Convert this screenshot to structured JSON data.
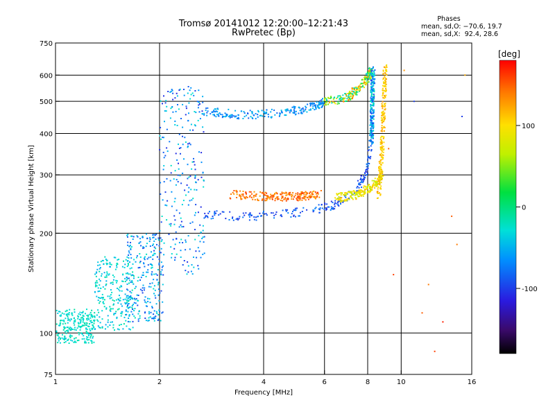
{
  "chart_data": {
    "type": "scatter",
    "title": "Tromsø 20141012 12:20:00–12:21:43",
    "subtitle": "RwPretec (Bp)",
    "xlabel": "Frequency [MHz]",
    "ylabel": "Stationary phase Virtual Height [km]",
    "xscale": "log",
    "yscale": "log",
    "xlim": [
      1,
      16
    ],
    "ylim": [
      75,
      750
    ],
    "xticks": [
      1,
      2,
      4,
      6,
      8,
      10,
      16
    ],
    "yticks": [
      75,
      100,
      200,
      300,
      400,
      500,
      600,
      750
    ],
    "xgrid": [
      2,
      4,
      6,
      8,
      10
    ],
    "ygrid": [
      100,
      200,
      300,
      400,
      500,
      600
    ],
    "grid": true,
    "colorbar": {
      "label": "[deg]",
      "range": [
        -180,
        180
      ],
      "ticks": [
        100,
        0,
        -100
      ],
      "colormap": "rainbow",
      "placement": "right"
    },
    "stats": {
      "header": "Phases",
      "o_mode": "mean, sd,O: −70.6, 19.7",
      "x_mode": "mean, sd,X:  92.4, 28.6"
    },
    "traces": [
      {
        "name": "",
        "kind": "band",
        "x": [
          1.0,
          1.3
        ],
        "y": [
          93,
          118
        ],
        "phase": [
          -40,
          -10
        ]
      },
      {
        "name": "",
        "kind": "band",
        "x": [
          1.3,
          1.7
        ],
        "y": [
          102,
          170
        ],
        "phase": [
          -55,
          -10
        ]
      },
      {
        "name": "",
        "kind": "band",
        "x": [
          1.6,
          2.05
        ],
        "y": [
          108,
          200
        ],
        "phase": [
          -100,
          -20
        ]
      },
      {
        "name": "",
        "kind": "band",
        "x": [
          2.0,
          2.7
        ],
        "y": [
          150,
          560
        ],
        "phase": [
          -110,
          -20
        ]
      },
      {
        "name": "",
        "kind": "curve",
        "x": [
          2.7,
          3.5,
          4.5,
          5.5,
          6.0
        ],
        "y": [
          465,
          455,
          460,
          480,
          495
        ],
        "phase": [
          -90,
          -40
        ]
      },
      {
        "name": "",
        "kind": "curve",
        "x": [
          6.0,
          7.0,
          7.5,
          8.0,
          8.2
        ],
        "y": [
          495,
          515,
          545,
          590,
          620
        ],
        "phase": [
          -40,
          140
        ]
      },
      {
        "name": "",
        "kind": "curve",
        "x": [
          2.7,
          3.5,
          4.5,
          5.5,
          6.5,
          7.3,
          7.9,
          8.2
        ],
        "y": [
          228,
          224,
          228,
          235,
          245,
          265,
          300,
          380
        ],
        "phase": [
          -110,
          -70
        ]
      },
      {
        "name": "",
        "kind": "curve",
        "x": [
          8.2,
          8.25,
          8.3
        ],
        "y": [
          380,
          500,
          620
        ],
        "phase": [
          -100,
          -10
        ]
      },
      {
        "name": "",
        "kind": "curve",
        "x": [
          3.2,
          4.0,
          5.0,
          5.8
        ],
        "y": [
          262,
          258,
          258,
          262
        ],
        "phase": [
          120,
          165
        ]
      },
      {
        "name": "",
        "kind": "curve",
        "x": [
          6.5,
          7.5,
          8.3,
          8.8
        ],
        "y": [
          255,
          262,
          278,
          300
        ],
        "phase": [
          60,
          120
        ]
      },
      {
        "name": "",
        "kind": "curve",
        "x": [
          8.6,
          8.8,
          8.9,
          9.0
        ],
        "y": [
          260,
          350,
          480,
          640
        ],
        "phase": [
          90,
          130
        ]
      },
      {
        "name": "",
        "kind": "scatter",
        "x": [
          9.2,
          9.5,
          10.2,
          10.9,
          11.5,
          12.0,
          12.5,
          13.2,
          14.0,
          14.5,
          15.0,
          15.3
        ],
        "y": [
          360,
          150,
          620,
          500,
          115,
          140,
          88,
          108,
          225,
          185,
          450,
          600
        ],
        "phase": [
          150,
          160,
          130,
          -100,
          150,
          140,
          160,
          170,
          150,
          140,
          -100,
          120
        ]
      }
    ]
  }
}
